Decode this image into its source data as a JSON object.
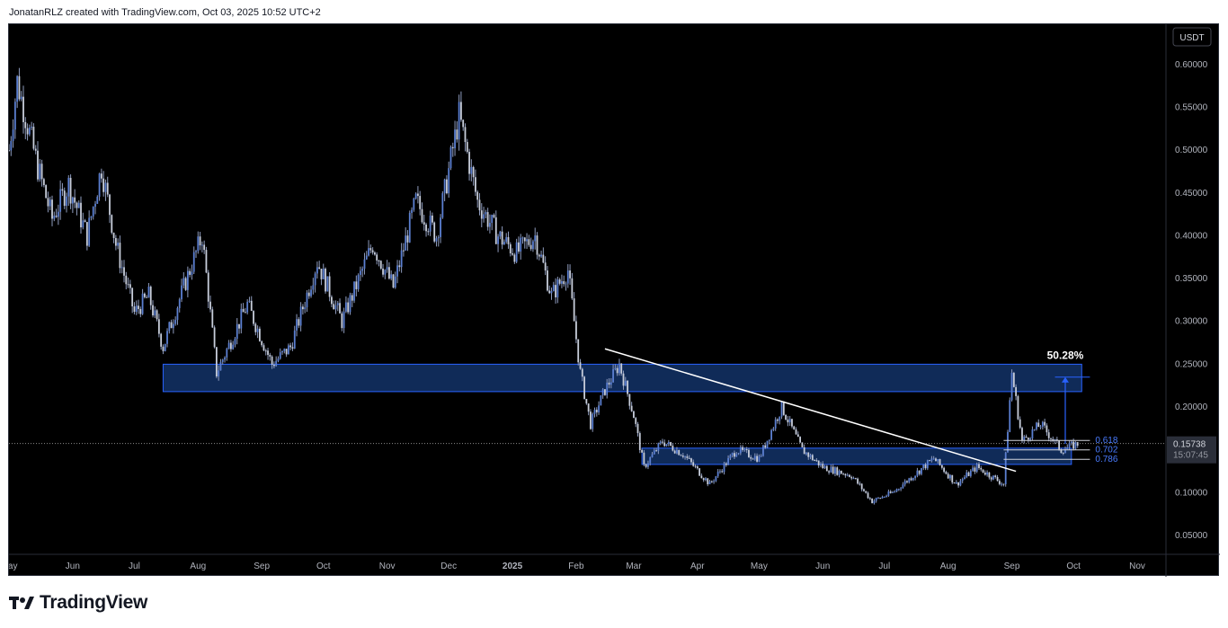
{
  "header": {
    "text": "JonatanRLZ created with TradingView.com, Oct 03, 2025 10:52 UTC+2"
  },
  "footer": {
    "logo_text": "TradingView"
  },
  "colors": {
    "background": "#000000",
    "candle": "#5b7fd1",
    "zone_fill": "#1e4fa0",
    "zone_border": "#2962ff",
    "trendline": "#ffffff",
    "price_line": "#8a8a8a",
    "fib_label": "#4a7cff"
  },
  "chart_data": {
    "type": "candlestick",
    "currency": "USDT",
    "y_ticks": [
      "0.60000",
      "0.55000",
      "0.50000",
      "0.45000",
      "0.40000",
      "0.35000",
      "0.30000",
      "0.25000",
      "0.20000",
      "0.15000",
      "0.10000",
      "0.05000"
    ],
    "ylim": [
      0.028,
      0.647
    ],
    "x_ticks": [
      "May",
      "Jun",
      "Jul",
      "Aug",
      "Sep",
      "Oct",
      "Nov",
      "Dec",
      "2025",
      "Feb",
      "Mar",
      "Apr",
      "May",
      "Jun",
      "Jul",
      "Aug",
      "Sep",
      "Oct",
      "Nov"
    ],
    "x_range": [
      "2024-05-01",
      "2025-11-15"
    ],
    "last_price": "0.15738",
    "countdown": "15:07:45",
    "series_path": [
      [
        "2024-05-01",
        0.5
      ],
      [
        "2024-05-05",
        0.58
      ],
      [
        "2024-05-15",
        0.48
      ],
      [
        "2024-05-22",
        0.42
      ],
      [
        "2024-05-30",
        0.46
      ],
      [
        "2024-06-08",
        0.4
      ],
      [
        "2024-06-15",
        0.48
      ],
      [
        "2024-06-22",
        0.39
      ],
      [
        "2024-07-01",
        0.31
      ],
      [
        "2024-07-08",
        0.33
      ],
      [
        "2024-07-15",
        0.27
      ],
      [
        "2024-07-25",
        0.34
      ],
      [
        "2024-08-03",
        0.4
      ],
      [
        "2024-08-10",
        0.24
      ],
      [
        "2024-08-25",
        0.32
      ],
      [
        "2024-09-06",
        0.25
      ],
      [
        "2024-09-15",
        0.27
      ],
      [
        "2024-09-28",
        0.37
      ],
      [
        "2024-10-10",
        0.3
      ],
      [
        "2024-10-25",
        0.39
      ],
      [
        "2024-11-04",
        0.34
      ],
      [
        "2024-11-15",
        0.44
      ],
      [
        "2024-11-25",
        0.4
      ],
      [
        "2024-12-06",
        0.54
      ],
      [
        "2024-12-15",
        0.44
      ],
      [
        "2024-12-25",
        0.4
      ],
      [
        "2025-01-03",
        0.38
      ],
      [
        "2025-01-12",
        0.4
      ],
      [
        "2025-01-20",
        0.33
      ],
      [
        "2025-01-28",
        0.36
      ],
      [
        "2025-02-03",
        0.24
      ],
      [
        "2025-02-08",
        0.18
      ],
      [
        "2025-02-15",
        0.22
      ],
      [
        "2025-02-22",
        0.25
      ],
      [
        "2025-03-01",
        0.19
      ],
      [
        "2025-03-06",
        0.13
      ],
      [
        "2025-03-15",
        0.16
      ],
      [
        "2025-03-25",
        0.145
      ],
      [
        "2025-04-07",
        0.11
      ],
      [
        "2025-04-20",
        0.15
      ],
      [
        "2025-05-01",
        0.14
      ],
      [
        "2025-05-12",
        0.2
      ],
      [
        "2025-05-22",
        0.15
      ],
      [
        "2025-06-01",
        0.13
      ],
      [
        "2025-06-15",
        0.12
      ],
      [
        "2025-06-25",
        0.09
      ],
      [
        "2025-07-05",
        0.1
      ],
      [
        "2025-07-15",
        0.12
      ],
      [
        "2025-07-25",
        0.14
      ],
      [
        "2025-08-05",
        0.11
      ],
      [
        "2025-08-15",
        0.13
      ],
      [
        "2025-08-28",
        0.11
      ],
      [
        "2025-09-01",
        0.24
      ],
      [
        "2025-09-06",
        0.16
      ],
      [
        "2025-09-15",
        0.18
      ],
      [
        "2025-09-25",
        0.15
      ],
      [
        "2025-10-03",
        0.157
      ]
    ],
    "zones": [
      {
        "from": "2024-07-15",
        "to": "2025-10-05",
        "low": 0.218,
        "high": 0.25
      },
      {
        "from": "2025-03-05",
        "to": "2025-09-30",
        "low": 0.133,
        "high": 0.152
      }
    ],
    "trendline": {
      "from": [
        "2025-02-15",
        0.268
      ],
      "to": [
        "2025-09-03",
        0.125
      ]
    },
    "measure": {
      "label": "50.28%",
      "date": "2025-09-27",
      "from": 0.157,
      "to": 0.235,
      "line_from": "2025-09-22",
      "line_to": "2025-10-09"
    },
    "fib": {
      "line_from": "2025-08-28",
      "line_to": "2025-10-09",
      "levels": [
        {
          "label": "0.618",
          "value": 0.161
        },
        {
          "label": "0.702",
          "value": 0.15
        },
        {
          "label": "0.786",
          "value": 0.139
        }
      ]
    }
  }
}
